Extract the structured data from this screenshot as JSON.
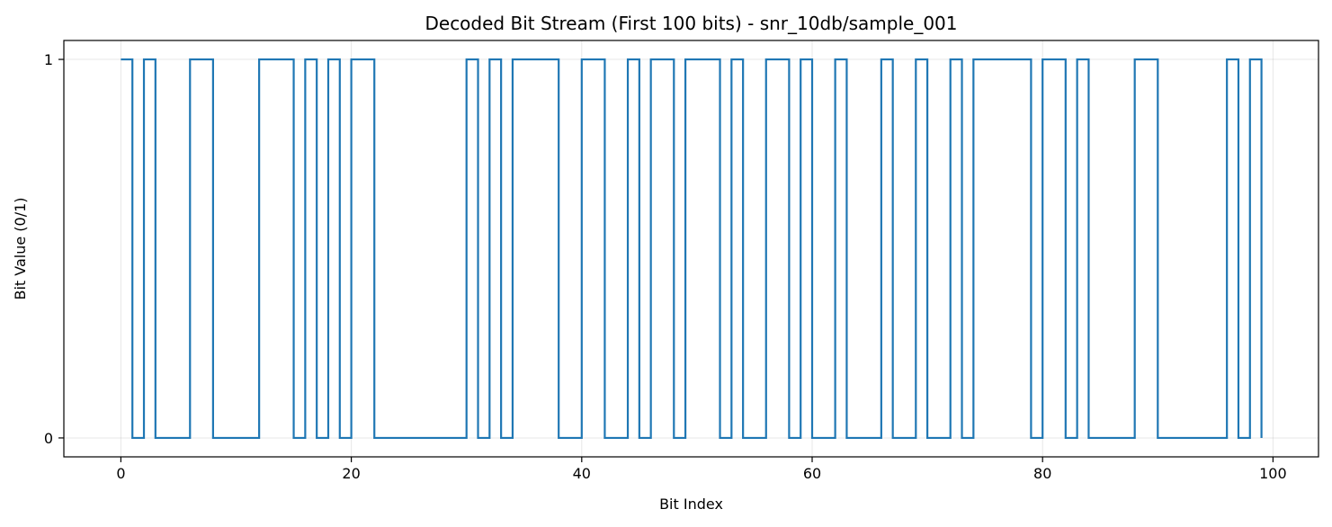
{
  "chart_data": {
    "type": "line",
    "drawstyle": "steps-post",
    "title": "Decoded Bit Stream (First 100 bits) - snr_10db/sample_001",
    "xlabel": "Bit Index",
    "ylabel": "Bit Value (0/1)",
    "xlim": [
      -4.95,
      103.95
    ],
    "ylim": [
      -0.05,
      1.05
    ],
    "xticks": [
      0,
      20,
      40,
      60,
      80,
      100
    ],
    "yticks": [
      0,
      1
    ],
    "grid": true,
    "color": "#1f77b4",
    "bits": [
      1,
      0,
      1,
      0,
      0,
      0,
      1,
      1,
      0,
      0,
      0,
      0,
      1,
      1,
      1,
      0,
      1,
      0,
      1,
      0,
      1,
      1,
      0,
      0,
      0,
      0,
      0,
      0,
      0,
      0,
      1,
      0,
      1,
      0,
      1,
      1,
      1,
      1,
      0,
      0,
      1,
      1,
      0,
      0,
      1,
      0,
      1,
      1,
      0,
      1,
      1,
      1,
      0,
      1,
      0,
      0,
      1,
      1,
      0,
      1,
      0,
      0,
      1,
      0,
      0,
      0,
      1,
      0,
      0,
      1,
      0,
      0,
      1,
      0,
      1,
      1,
      1,
      1,
      1,
      0,
      1,
      1,
      0,
      1,
      0,
      0,
      0,
      0,
      1,
      1,
      0,
      0,
      0,
      0,
      0,
      0,
      1,
      0,
      1,
      0
    ]
  }
}
